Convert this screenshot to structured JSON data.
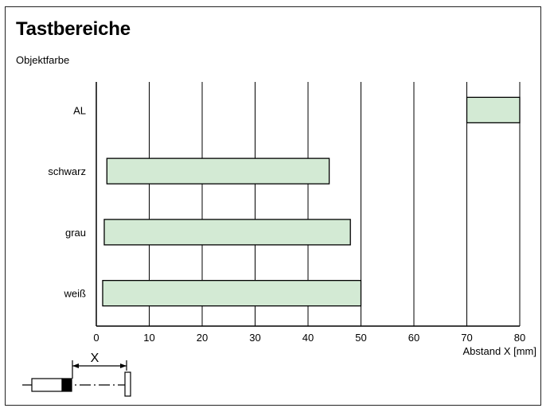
{
  "title": "Tastbereiche",
  "subtitle": "Objektfarbe",
  "colors": {
    "bar_fill": "#d3ead4",
    "bar_stroke": "#000000",
    "grid": "#000000"
  },
  "chart_data": {
    "type": "bar",
    "orientation": "horizontal",
    "title": "Tastbereiche",
    "ylabel": "Objektfarbe",
    "xlabel": "Abstand X [mm]",
    "xlim": [
      0,
      80
    ],
    "xticks": [
      0,
      10,
      20,
      30,
      40,
      50,
      60,
      70,
      80
    ],
    "grid": true,
    "categories": [
      "AL",
      "schwarz",
      "grau",
      "weiß"
    ],
    "ranges": [
      {
        "category": "AL",
        "start": 70,
        "end": 80
      },
      {
        "category": "schwarz",
        "start": 2,
        "end": 44
      },
      {
        "category": "grau",
        "start": 1.5,
        "end": 48
      },
      {
        "category": "weiß",
        "start": 1.2,
        "end": 50
      }
    ]
  },
  "diagram": {
    "x_marker": "X",
    "icon": "sensor-distance-diagram-icon"
  }
}
